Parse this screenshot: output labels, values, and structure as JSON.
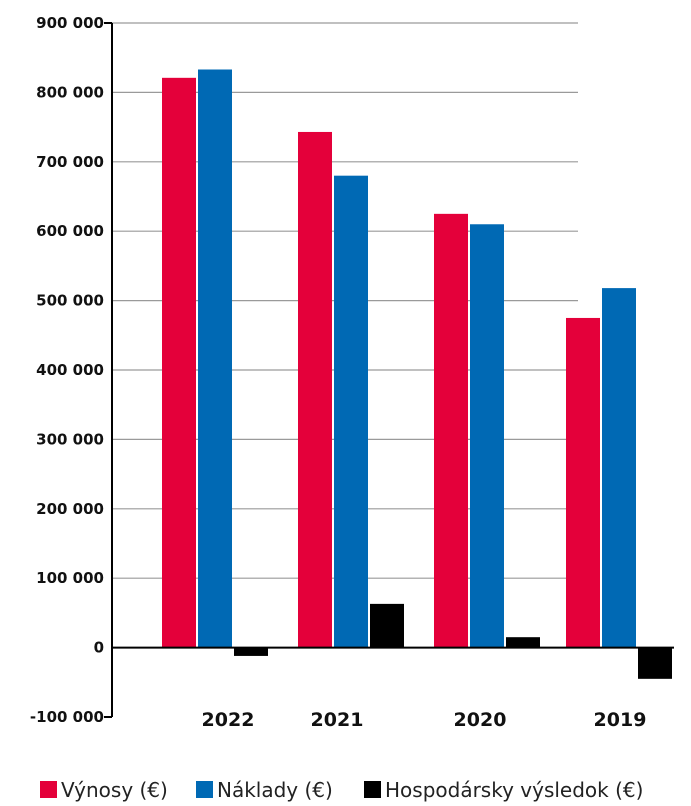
{
  "chart_data": {
    "type": "bar",
    "categories": [
      "2022",
      "2021",
      "2020",
      "2019"
    ],
    "series": [
      {
        "name": "Výnosy (€)",
        "values": [
          821000,
          743000,
          625000,
          475000
        ],
        "color": "#E4003A"
      },
      {
        "name": "Náklady (€)",
        "values": [
          833000,
          680000,
          610000,
          518000
        ],
        "color": "#0069B4"
      },
      {
        "name": "Hospodársky výsledok (€)",
        "values": [
          -12000,
          63000,
          15000,
          -45000
        ],
        "color": "#000000"
      }
    ],
    "ylim": [
      -100000,
      900000
    ],
    "yticks": [
      {
        "value": 900000,
        "label": "900 000"
      },
      {
        "value": 800000,
        "label": "800 000"
      },
      {
        "value": 700000,
        "label": "700 000"
      },
      {
        "value": 600000,
        "label": "600 000"
      },
      {
        "value": 500000,
        "label": "500 000"
      },
      {
        "value": 400000,
        "label": "400 000"
      },
      {
        "value": 300000,
        "label": "300 000"
      },
      {
        "value": 200000,
        "label": "200 000"
      },
      {
        "value": 100000,
        "label": "100 000"
      },
      {
        "value": 0,
        "label": "0"
      },
      {
        "value": -100000,
        "label": "-100 000"
      }
    ],
    "grid": true,
    "gridline_color": "#9a9a9a",
    "legend_position": "bottom"
  }
}
